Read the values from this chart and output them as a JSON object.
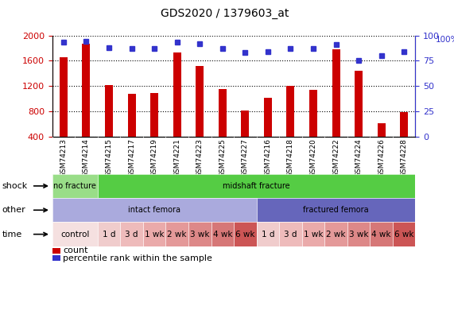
{
  "title": "GDS2020 / 1379603_at",
  "samples": [
    "GSM74213",
    "GSM74214",
    "GSM74215",
    "GSM74217",
    "GSM74219",
    "GSM74221",
    "GSM74223",
    "GSM74225",
    "GSM74227",
    "GSM74216",
    "GSM74218",
    "GSM74220",
    "GSM74222",
    "GSM74224",
    "GSM74226",
    "GSM74228"
  ],
  "bar_values": [
    1650,
    1870,
    1220,
    1080,
    1090,
    1730,
    1520,
    1160,
    810,
    1020,
    1200,
    1140,
    1780,
    1440,
    620,
    790
  ],
  "dot_values": [
    93,
    94,
    88,
    87,
    87,
    93,
    92,
    87,
    83,
    84,
    87,
    87,
    91,
    75,
    80,
    84
  ],
  "bar_color": "#cc0000",
  "dot_color": "#3333cc",
  "ylim_left": [
    400,
    2000
  ],
  "ylim_right": [
    0,
    100
  ],
  "yticks_left": [
    400,
    800,
    1200,
    1600,
    2000
  ],
  "yticks_right": [
    0,
    25,
    50,
    75,
    100
  ],
  "shock_labels": [
    {
      "text": "no fracture",
      "start": 0,
      "end": 2,
      "color": "#99dd88"
    },
    {
      "text": "midshaft fracture",
      "start": 2,
      "end": 16,
      "color": "#55cc44"
    }
  ],
  "other_labels": [
    {
      "text": "intact femora",
      "start": 0,
      "end": 9,
      "color": "#aaaadd"
    },
    {
      "text": "fractured femora",
      "start": 9,
      "end": 16,
      "color": "#6666bb"
    }
  ],
  "time_labels": [
    {
      "text": "control",
      "start": 0,
      "end": 2,
      "color": "#f5e0e0"
    },
    {
      "text": "1 d",
      "start": 2,
      "end": 3,
      "color": "#f0cccc"
    },
    {
      "text": "3 d",
      "start": 3,
      "end": 4,
      "color": "#eebbbb"
    },
    {
      "text": "1 wk",
      "start": 4,
      "end": 5,
      "color": "#eaaaaa"
    },
    {
      "text": "2 wk",
      "start": 5,
      "end": 6,
      "color": "#e49999"
    },
    {
      "text": "3 wk",
      "start": 6,
      "end": 7,
      "color": "#dd8888"
    },
    {
      "text": "4 wk",
      "start": 7,
      "end": 8,
      "color": "#d67777"
    },
    {
      "text": "6 wk",
      "start": 8,
      "end": 9,
      "color": "#cc5555"
    },
    {
      "text": "1 d",
      "start": 9,
      "end": 10,
      "color": "#f0cccc"
    },
    {
      "text": "3 d",
      "start": 10,
      "end": 11,
      "color": "#eebbbb"
    },
    {
      "text": "1 wk",
      "start": 11,
      "end": 12,
      "color": "#eaaaaa"
    },
    {
      "text": "2 wk",
      "start": 12,
      "end": 13,
      "color": "#e49999"
    },
    {
      "text": "3 wk",
      "start": 13,
      "end": 14,
      "color": "#dd8888"
    },
    {
      "text": "4 wk",
      "start": 14,
      "end": 15,
      "color": "#d67777"
    },
    {
      "text": "6 wk",
      "start": 15,
      "end": 16,
      "color": "#cc5555"
    }
  ],
  "row_labels": [
    "shock",
    "other",
    "time"
  ],
  "legend_bar_label": "count",
  "legend_dot_label": "percentile rank within the sample",
  "plot_bg_color": "#ffffff",
  "label_area_color": "#cccccc",
  "fig_bg_color": "#ffffff"
}
